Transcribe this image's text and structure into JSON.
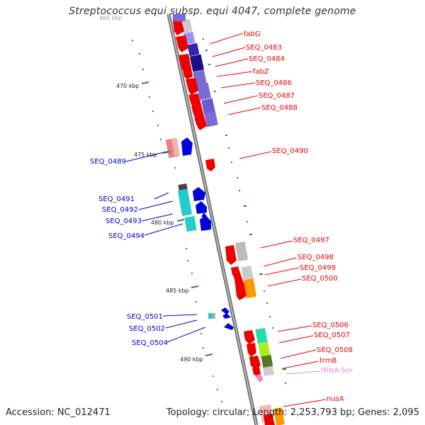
{
  "title": "Streptococcus equi subsp. equi 4047, complete genome",
  "accession": "Accession: NC_012471",
  "topology": "Topology: circular; Length: 2,253,793 bp; Genes: 2,095",
  "ticks": {
    "t465_partial": "465 kbp",
    "t470": "470 kbp",
    "t475": "475 kbp",
    "t480": "480 kbp",
    "t485": "485 kbp",
    "t490": "490 kbp"
  },
  "right_labels": {
    "fabG": "fabG",
    "seq0483": "SEQ_0483",
    "seq0484": "SEQ_0484",
    "fabZ": "fabZ",
    "seq0486": "SEQ_0486",
    "seq0487": "SEQ_0487",
    "seq0488": "SEQ_0488",
    "seq0490": "SEQ_0490",
    "seq0497": "SEQ_0497",
    "seq0498": "SEQ_0498",
    "seq0499": "SEQ_0499",
    "seq0500": "SEQ_0500",
    "seq0506": "SEQ_0506",
    "seq0507": "SEQ_0507",
    "seq0508": "SEQ_0508",
    "trmB": "trmB",
    "trnaSer": "tRNA-Ser",
    "nusA": "nusA"
  },
  "left_labels": {
    "seq0489": "SEQ_0489",
    "seq0491": "SEQ_0491",
    "seq0492": "SEQ_0492",
    "seq0493": "SEQ_0493",
    "seq0494": "SEQ_0494",
    "seq0501": "SEQ_0501",
    "seq0502": "SEQ_0502",
    "seq0504": "SEQ_0504"
  },
  "colors": {
    "forward_gene": "#ee0000",
    "reverse_gene": "#0000dd",
    "trna": "#ee88bb",
    "backbone": "#888888",
    "gc_dot": "#2a8a2a",
    "cog_purple": "#7a6bd6",
    "cog_cyan": "#22cccc",
    "cog_orange": "#ff9900",
    "cog_lime": "#aaee22"
  }
}
